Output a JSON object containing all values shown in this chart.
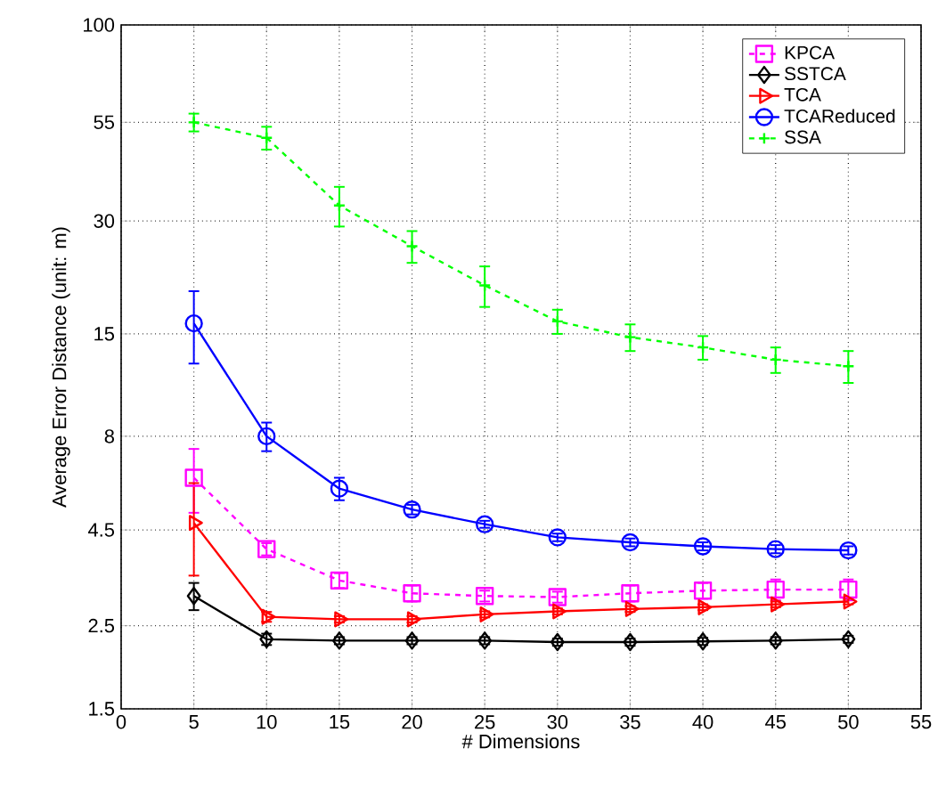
{
  "chart_data": {
    "type": "line",
    "xlabel": "# Dimensions",
    "ylabel": "Average Error Distance (unit: m)",
    "x": [
      5,
      10,
      15,
      20,
      25,
      30,
      35,
      40,
      45,
      50
    ],
    "series": [
      {
        "name": "KPCA",
        "color": "#ff00ff",
        "marker": "square",
        "line_style": "dashed",
        "values": [
          6.2,
          4.0,
          3.3,
          3.05,
          3.0,
          2.98,
          3.05,
          3.1,
          3.12,
          3.12
        ],
        "errors": [
          1.2,
          0.15,
          0.15,
          0.15,
          0.1,
          0.1,
          0.15,
          0.15,
          0.2,
          0.2
        ]
      },
      {
        "name": "SSTCA",
        "color": "#000000",
        "marker": "diamond",
        "line_style": "solid",
        "values": [
          3.0,
          2.3,
          2.28,
          2.28,
          2.28,
          2.26,
          2.26,
          2.27,
          2.28,
          2.3
        ],
        "errors": [
          0.25,
          0.08,
          0.05,
          0.05,
          0.05,
          0.05,
          0.05,
          0.05,
          0.05,
          0.05
        ]
      },
      {
        "name": "TCA",
        "color": "#ff0000",
        "marker": "triangle",
        "line_style": "solid",
        "values": [
          4.7,
          2.64,
          2.6,
          2.6,
          2.68,
          2.73,
          2.77,
          2.8,
          2.85,
          2.9
        ],
        "errors": [
          1.3,
          0.08,
          0.05,
          0.05,
          0.05,
          0.05,
          0.05,
          0.05,
          0.05,
          0.05
        ]
      },
      {
        "name": "TCAReduced",
        "color": "#0000ff",
        "marker": "circle",
        "line_style": "solid",
        "values": [
          16,
          8.0,
          5.8,
          5.1,
          4.66,
          4.3,
          4.17,
          4.07,
          4.0,
          3.97
        ],
        "errors": [
          3.5,
          0.7,
          0.4,
          0.15,
          0.1,
          0.1,
          0.1,
          0.1,
          0.1,
          0.1
        ]
      },
      {
        "name": "SSA",
        "color": "#00ff00",
        "marker": "cross",
        "line_style": "dashed",
        "values": [
          55,
          50,
          33,
          25.7,
          20.2,
          16.2,
          14.7,
          13.8,
          12.8,
          12.3
        ],
        "errors": [
          3,
          3.5,
          4,
          2.5,
          2.5,
          1.2,
          1.2,
          1.0,
          1.0,
          1.2
        ]
      }
    ],
    "xlim": [
      0,
      55
    ],
    "xticks": [
      0,
      5,
      10,
      15,
      20,
      25,
      30,
      35,
      40,
      45,
      50,
      55
    ],
    "ylim": [
      1.5,
      100
    ],
    "yticks": [
      1.5,
      2.5,
      4.5,
      8,
      15,
      30,
      55,
      100
    ],
    "log": "y",
    "grid": true,
    "legend": "top right"
  }
}
